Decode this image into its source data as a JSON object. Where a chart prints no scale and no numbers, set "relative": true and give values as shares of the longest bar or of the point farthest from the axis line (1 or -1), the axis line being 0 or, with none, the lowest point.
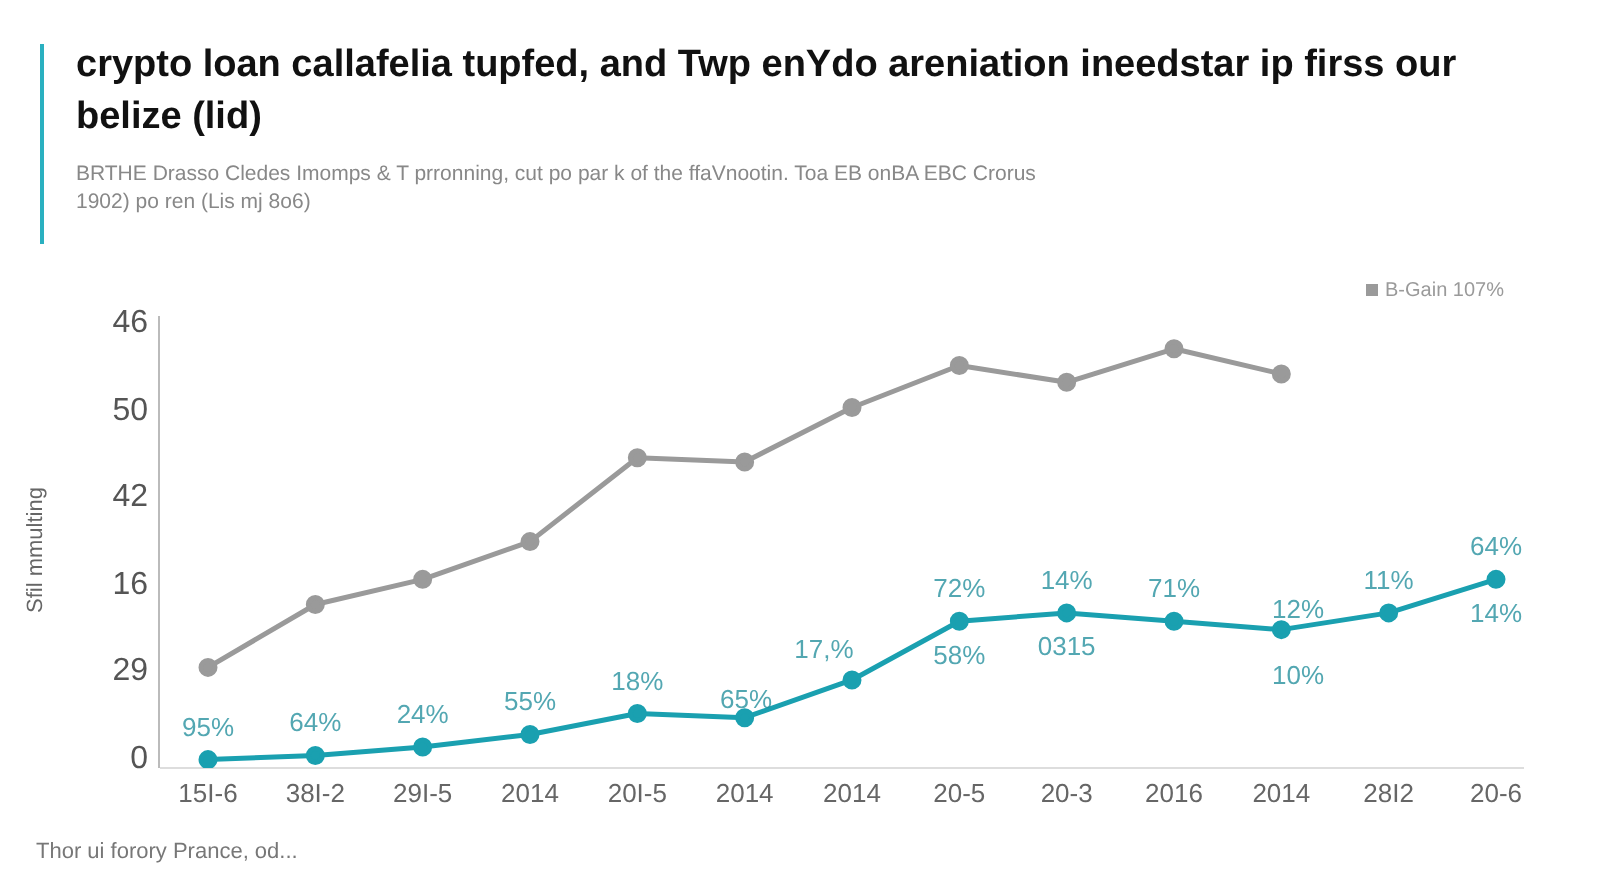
{
  "chart_data": {
    "type": "line",
    "title": "crypto loan callafelia tupfed, and Twp enYdo areniation ineedstar ip firss our belize (lid)",
    "subtitle": "BRTHE Drasso Cledes Imomps & T prronning, cut po par k of the ffaVnootin. Toa EB onBA EBC Crorus 1902) po ren (Lis mj 8o6)",
    "categories": [
      "15I-6",
      "38I-2",
      "29I-5",
      "2014",
      "20I-5",
      "2014",
      "2014",
      "20-5",
      "20-3",
      "2016",
      "2014",
      "28I2",
      "20-6"
    ],
    "relative": true,
    "series": [
      {
        "name": "B-Gain 107%",
        "color": "#9a9a9a",
        "values": [
          0.24,
          0.39,
          0.45,
          0.54,
          0.74,
          0.73,
          0.86,
          0.96,
          0.92,
          1,
          0.94,
          null,
          null
        ]
      },
      {
        "color": "#1aa0b0",
        "values": [
          0.02,
          0.03,
          0.05,
          0.08,
          0.13,
          0.12,
          0.21,
          0.35,
          0.37,
          0.35,
          0.33,
          0.37,
          0.45
        ]
      }
    ],
    "annotations": [
      {
        "text": "95%",
        "x": "15I-6",
        "y": 0.02
      },
      {
        "text": "64%",
        "x": "38I-2",
        "y": 0.03
      },
      {
        "text": "24%",
        "x": "29I-5",
        "y": 0.05
      },
      {
        "text": "55%",
        "x": "2014",
        "y": 0.08
      },
      {
        "text": "18%",
        "x": "20I-5",
        "y": 0.13
      },
      {
        "text": "72%",
        "x": "20-5",
        "y": 0.35
      },
      {
        "text": "58%",
        "x": "20-5",
        "y": 0.35
      },
      {
        "text": "14%",
        "x": "20-3",
        "y": 0.37
      },
      {
        "text": "0315",
        "x": "20-3",
        "y": 0.37
      },
      {
        "text": "71%",
        "x": "2016",
        "y": 0.35
      },
      {
        "text": "11%",
        "x": "28I2",
        "y": 0.37
      },
      {
        "text": "64%",
        "x": "20-6",
        "y": 0.45
      },
      {
        "text": "14%",
        "x": "20-6",
        "y": 0.45
      },
      "65%",
      "17,%",
      "12%",
      "10%",
      "Sfil mmulting",
      "46",
      "50",
      "42",
      "16",
      "29",
      "0",
      "Thor ui forory Prance, od..."
    ],
    "marker": "circle",
    "legend": "top right"
  }
}
